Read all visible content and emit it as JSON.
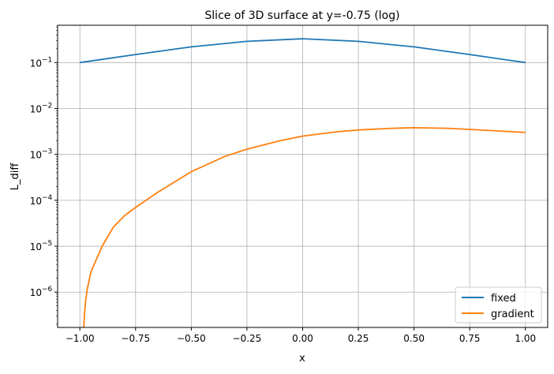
{
  "chart_data": {
    "type": "line",
    "title": "Slice of 3D surface at y=-0.75 (log)",
    "xlabel": "x",
    "ylabel": "L_diff",
    "xlim": [
      -1.1,
      1.1
    ],
    "ylim": [
      1.7e-07,
      0.65
    ],
    "yscale": "log",
    "grid": true,
    "legend_position": "lower-right",
    "xticks": [
      -1.0,
      -0.75,
      -0.5,
      -0.25,
      0.0,
      0.25,
      0.5,
      0.75,
      1.0
    ],
    "xtick_labels": [
      "−1.00",
      "−0.75",
      "−0.50",
      "−0.25",
      "0.00",
      "0.25",
      "0.50",
      "0.75",
      "1.00"
    ],
    "yticks": [
      1e-06,
      1e-05,
      0.0001,
      0.001,
      0.01,
      0.1
    ],
    "ytick_exponents": [
      "−6",
      "−5",
      "−4",
      "−3",
      "−2",
      "−1"
    ],
    "ytick_base": "10",
    "series": [
      {
        "name": "fixed",
        "color": "#1f77b4",
        "x": [
          -1.0,
          -0.75,
          -0.5,
          -0.25,
          0.0,
          0.25,
          0.5,
          0.75,
          1.0
        ],
        "y": [
          0.1,
          0.15,
          0.22,
          0.29,
          0.33,
          0.29,
          0.22,
          0.15,
          0.1
        ]
      },
      {
        "name": "gradient",
        "color": "#ff7f0e",
        "x": [
          -0.985,
          -0.98,
          -0.975,
          -0.968,
          -0.95,
          -0.9,
          -0.85,
          -0.8,
          -0.75,
          -0.65,
          -0.5,
          -0.35,
          -0.25,
          -0.1,
          0.0,
          0.15,
          0.25,
          0.4,
          0.5,
          0.65,
          0.75,
          0.9,
          1.0
        ],
        "y": [
          1e-07,
          3e-07,
          6e-07,
          1.1e-06,
          2.8e-06,
          1e-05,
          2.6e-05,
          4.6e-05,
          7e-05,
          0.00015,
          0.00042,
          0.0009,
          0.0013,
          0.002,
          0.0025,
          0.0031,
          0.0034,
          0.0037,
          0.0038,
          0.0037,
          0.0035,
          0.0032,
          0.003
        ]
      }
    ]
  }
}
